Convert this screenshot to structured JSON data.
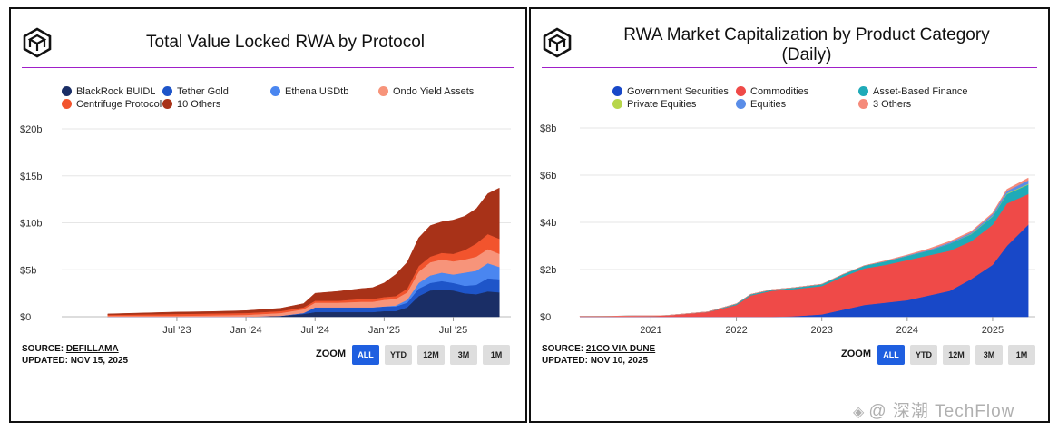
{
  "watermark": {
    "icon": "diamond-icon",
    "text": "@ 深潮 TechFlow"
  },
  "charts": [
    {
      "logo_icon": "cube-logo-icon",
      "title": "Total Value Locked RWA by Protocol",
      "source_label": "SOURCE:",
      "source_name": "DEFILLAMA",
      "updated": "UPDATED: NOV 15, 2025",
      "zoom_label": "ZOOM",
      "zoom_buttons": [
        "ALL",
        "YTD",
        "12M",
        "3M",
        "1M"
      ],
      "zoom_active": "ALL",
      "legend": [
        {
          "name": "BlackRock BUIDL",
          "color": "#1a2e66"
        },
        {
          "name": "Tether Gold",
          "color": "#1e55c9"
        },
        {
          "name": "Ethena USDtb",
          "color": "#4a86f0"
        },
        {
          "name": "Ondo Yield Assets",
          "color": "#f7947a"
        },
        {
          "name": "Centrifuge Protocol",
          "color": "#f2542d"
        },
        {
          "name": "10 Others",
          "color": "#a83218"
        }
      ]
    },
    {
      "logo_icon": "cube-logo-icon",
      "title_line1": "RWA Market Capitalization by Product Category",
      "title_line2": "(Daily)",
      "source_label": "SOURCE:",
      "source_name": "21CO VIA DUNE",
      "updated": "UPDATED: NOV 10, 2025",
      "zoom_label": "ZOOM",
      "zoom_buttons": [
        "ALL",
        "YTD",
        "12M",
        "3M",
        "1M"
      ],
      "zoom_active": "ALL",
      "legend": [
        {
          "name": "Government Securities",
          "color": "#1848c8"
        },
        {
          "name": "Commodities",
          "color": "#ef4a48"
        },
        {
          "name": "Asset-Based Finance",
          "color": "#1faab8"
        },
        {
          "name": "Private Equities",
          "color": "#b7d64a"
        },
        {
          "name": "Equities",
          "color": "#5a8de8"
        },
        {
          "name": "3 Others",
          "color": "#f58a7a"
        }
      ]
    }
  ],
  "chart_data": [
    {
      "type": "area",
      "stacked": true,
      "title": "Total Value Locked RWA by Protocol",
      "ylabel": "",
      "y_tick_labels": [
        "$0",
        "$5b",
        "$10b",
        "$15b",
        "$20b"
      ],
      "ylim": [
        0,
        20
      ],
      "y_unit": "billion USD",
      "x": [
        "2023-01",
        "2023-04",
        "2023-07",
        "2023-10",
        "2024-01",
        "2024-04",
        "2024-06",
        "2024-07",
        "2024-09",
        "2024-11",
        "2024-12",
        "2025-01",
        "2025-02",
        "2025-03",
        "2025-04",
        "2025-05",
        "2025-06",
        "2025-07",
        "2025-08",
        "2025-09",
        "2025-10",
        "2025-11"
      ],
      "x_tick_labels": [
        "Jul '23",
        "Jan '24",
        "Jul '24",
        "Jan '25",
        "Jul '25"
      ],
      "x_tick_positions": [
        "2023-07",
        "2024-01",
        "2024-07",
        "2025-01",
        "2025-07"
      ],
      "series": [
        {
          "name": "BlackRock BUIDL",
          "color": "#1a2e66",
          "values": [
            0,
            0,
            0,
            0,
            0,
            0.1,
            0.3,
            0.5,
            0.5,
            0.5,
            0.5,
            0.6,
            0.6,
            1.0,
            2.2,
            2.8,
            2.9,
            2.8,
            2.5,
            2.4,
            2.7,
            2.6
          ]
        },
        {
          "name": "Tether Gold",
          "color": "#1e55c9",
          "values": [
            0,
            0,
            0,
            0,
            0,
            0,
            0.1,
            0.5,
            0.5,
            0.5,
            0.5,
            0.5,
            0.5,
            0.5,
            0.8,
            0.8,
            0.9,
            0.8,
            0.8,
            1.0,
            1.4,
            1.4
          ]
        },
        {
          "name": "Ethena USDtb",
          "color": "#4a86f0",
          "values": [
            0,
            0,
            0,
            0,
            0,
            0,
            0,
            0,
            0,
            0,
            0,
            0,
            0.1,
            0.3,
            0.6,
            0.8,
            0.9,
            0.9,
            1.4,
            1.5,
            1.6,
            1.3
          ]
        },
        {
          "name": "Ondo Yield Assets",
          "color": "#f7947a",
          "values": [
            0.1,
            0.1,
            0.1,
            0.15,
            0.2,
            0.3,
            0.4,
            0.5,
            0.5,
            0.6,
            0.6,
            0.7,
            0.7,
            0.8,
            1.2,
            1.4,
            1.4,
            1.4,
            1.4,
            1.5,
            1.5,
            1.4
          ]
        },
        {
          "name": "Centrifuge Protocol",
          "color": "#f2542d",
          "values": [
            0.1,
            0.15,
            0.2,
            0.2,
            0.2,
            0.2,
            0.2,
            0.2,
            0.2,
            0.3,
            0.3,
            0.3,
            0.3,
            0.4,
            0.6,
            0.6,
            0.7,
            0.8,
            1.0,
            1.4,
            1.6,
            1.6
          ]
        },
        {
          "name": "10 Others",
          "color": "#a83218",
          "values": [
            0.1,
            0.15,
            0.2,
            0.2,
            0.25,
            0.3,
            0.4,
            0.8,
            1.0,
            1.1,
            1.2,
            1.5,
            2.3,
            2.8,
            3.0,
            3.3,
            3.3,
            3.6,
            3.6,
            3.7,
            4.3,
            5.4
          ]
        }
      ],
      "grid": true,
      "legend_position": "top"
    },
    {
      "type": "area",
      "stacked": true,
      "title": "RWA Market Capitalization by Product Category (Daily)",
      "ylabel": "",
      "y_tick_labels": [
        "$0",
        "$2b",
        "$4b",
        "$6b",
        "$8b"
      ],
      "ylim": [
        0,
        8
      ],
      "y_unit": "billion USD",
      "x": [
        "2020-03",
        "2020-09",
        "2021-03",
        "2021-09",
        "2022-01",
        "2022-03",
        "2022-06",
        "2022-09",
        "2023-01",
        "2023-04",
        "2023-07",
        "2023-10",
        "2024-01",
        "2024-04",
        "2024-07",
        "2024-10",
        "2025-01",
        "2025-03",
        "2025-06"
      ],
      "x_tick_labels": [
        "2021",
        "2022",
        "2023",
        "2024",
        "2025"
      ],
      "x_tick_positions": [
        "2021-01",
        "2022-01",
        "2023-01",
        "2024-01",
        "2025-01"
      ],
      "series": [
        {
          "name": "Government Securities",
          "color": "#1848c8",
          "values": [
            0,
            0,
            0,
            0,
            0,
            0,
            0,
            0.02,
            0.1,
            0.3,
            0.5,
            0.6,
            0.7,
            0.9,
            1.1,
            1.6,
            2.2,
            3.0,
            3.9
          ]
        },
        {
          "name": "Commodities",
          "color": "#ef4a48",
          "values": [
            0.02,
            0.03,
            0.05,
            0.2,
            0.5,
            0.9,
            1.1,
            1.15,
            1.2,
            1.4,
            1.55,
            1.6,
            1.7,
            1.7,
            1.7,
            1.6,
            1.7,
            1.8,
            1.3
          ]
        },
        {
          "name": "Asset-Based Finance",
          "color": "#1faab8",
          "values": [
            0,
            0,
            0,
            0.01,
            0.05,
            0.05,
            0.05,
            0.06,
            0.08,
            0.1,
            0.12,
            0.15,
            0.18,
            0.2,
            0.3,
            0.3,
            0.35,
            0.4,
            0.4
          ]
        },
        {
          "name": "Private Equities",
          "color": "#b7d64a",
          "values": [
            0,
            0,
            0,
            0,
            0,
            0,
            0,
            0,
            0,
            0,
            0,
            0,
            0,
            0,
            0,
            0.02,
            0.02,
            0.03,
            0.03
          ]
        },
        {
          "name": "Equities",
          "color": "#5a8de8",
          "values": [
            0,
            0,
            0,
            0,
            0,
            0,
            0,
            0,
            0,
            0,
            0,
            0.01,
            0.02,
            0.03,
            0.05,
            0.05,
            0.08,
            0.1,
            0.15
          ]
        },
        {
          "name": "3 Others",
          "color": "#f58a7a",
          "values": [
            0,
            0,
            0,
            0,
            0,
            0,
            0,
            0,
            0,
            0,
            0,
            0.02,
            0.02,
            0.05,
            0.05,
            0.05,
            0.05,
            0.07,
            0.1
          ]
        }
      ],
      "grid": true,
      "legend_position": "top"
    }
  ]
}
